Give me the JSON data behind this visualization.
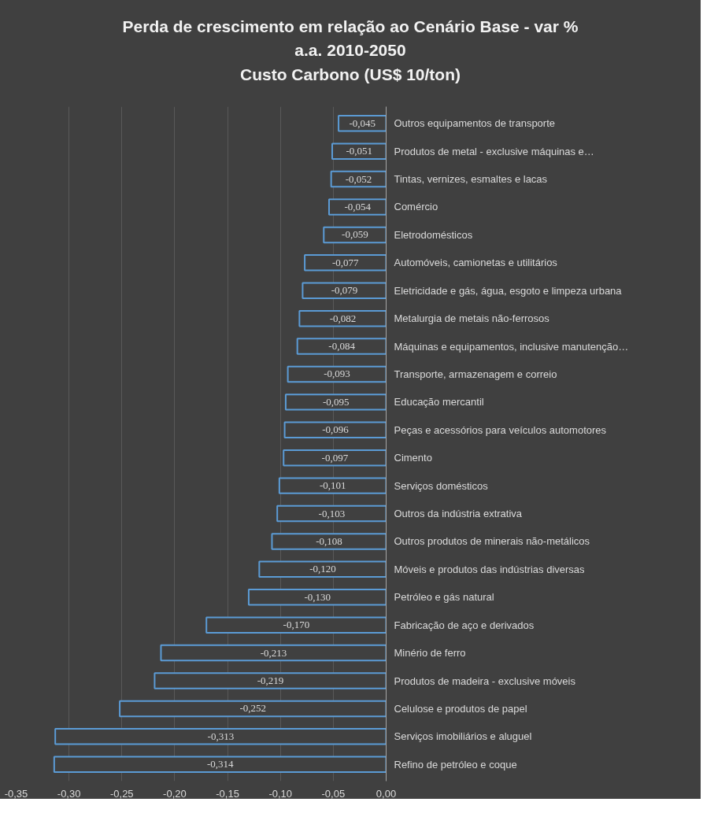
{
  "chart_data": {
    "type": "bar",
    "orientation": "horizontal",
    "title": "Perda de crescimento em relação ao Cenário Base - var %\na.a. 2010-2050\nCusto Carbono (US$ 10/ton)",
    "categories": [
      "Outros equipamentos de transporte",
      "Produtos de metal - exclusive máquinas e…",
      "Tintas, vernizes, esmaltes e lacas",
      "Comércio",
      "Eletrodomésticos",
      "Automóveis, camionetas e utilitários",
      "Eletricidade e gás, água, esgoto e limpeza urbana",
      "Metalurgia de metais não-ferrosos",
      "Máquinas e equipamentos, inclusive manutenção…",
      "Transporte, armazenagem e correio",
      "Educação mercantil",
      "Peças e acessórios para veículos automotores",
      "Cimento",
      "Serviços domésticos",
      "Outros da indústria extrativa",
      "Outros produtos de minerais não-metálicos",
      "Móveis e produtos das indústrias diversas",
      "Petróleo e gás natural",
      "Fabricação de aço e derivados",
      "Minério de ferro",
      "Produtos de madeira - exclusive móveis",
      "Celulose e produtos de papel",
      "Serviços imobiliários e aluguel",
      "Refino de petróleo e coque"
    ],
    "values": [
      -0.045,
      -0.051,
      -0.052,
      -0.054,
      -0.059,
      -0.077,
      -0.079,
      -0.082,
      -0.084,
      -0.093,
      -0.095,
      -0.096,
      -0.097,
      -0.101,
      -0.103,
      -0.108,
      -0.12,
      -0.13,
      -0.17,
      -0.213,
      -0.219,
      -0.252,
      -0.313,
      -0.314
    ],
    "value_labels": [
      "-0,045",
      "-0,051",
      "-0,052",
      "-0,054",
      "-0,059",
      "-0,077",
      "-0,079",
      "-0,082",
      "-0,084",
      "-0,093",
      "-0,095",
      "-0,096",
      "-0,097",
      "-0,101",
      "-0,103",
      "-0,108",
      "-0,120",
      "-0,130",
      "-0,170",
      "-0,213",
      "-0,219",
      "-0,252",
      "-0,313",
      "-0,314"
    ],
    "color": "#5b9bd5",
    "xlim": [
      -0.35,
      0
    ],
    "xticks": [
      {
        "value": -0.35,
        "label": "-0,35"
      },
      {
        "value": -0.3,
        "label": "-0,30"
      },
      {
        "value": -0.25,
        "label": "-0,25"
      },
      {
        "value": -0.2,
        "label": "-0,20"
      },
      {
        "value": -0.15,
        "label": "-0,15"
      },
      {
        "value": -0.1,
        "label": "-0,10"
      },
      {
        "value": -0.05,
        "label": "-0,05"
      },
      {
        "value": 0,
        "label": "0,00"
      }
    ],
    "grid": "x",
    "legend": false
  }
}
